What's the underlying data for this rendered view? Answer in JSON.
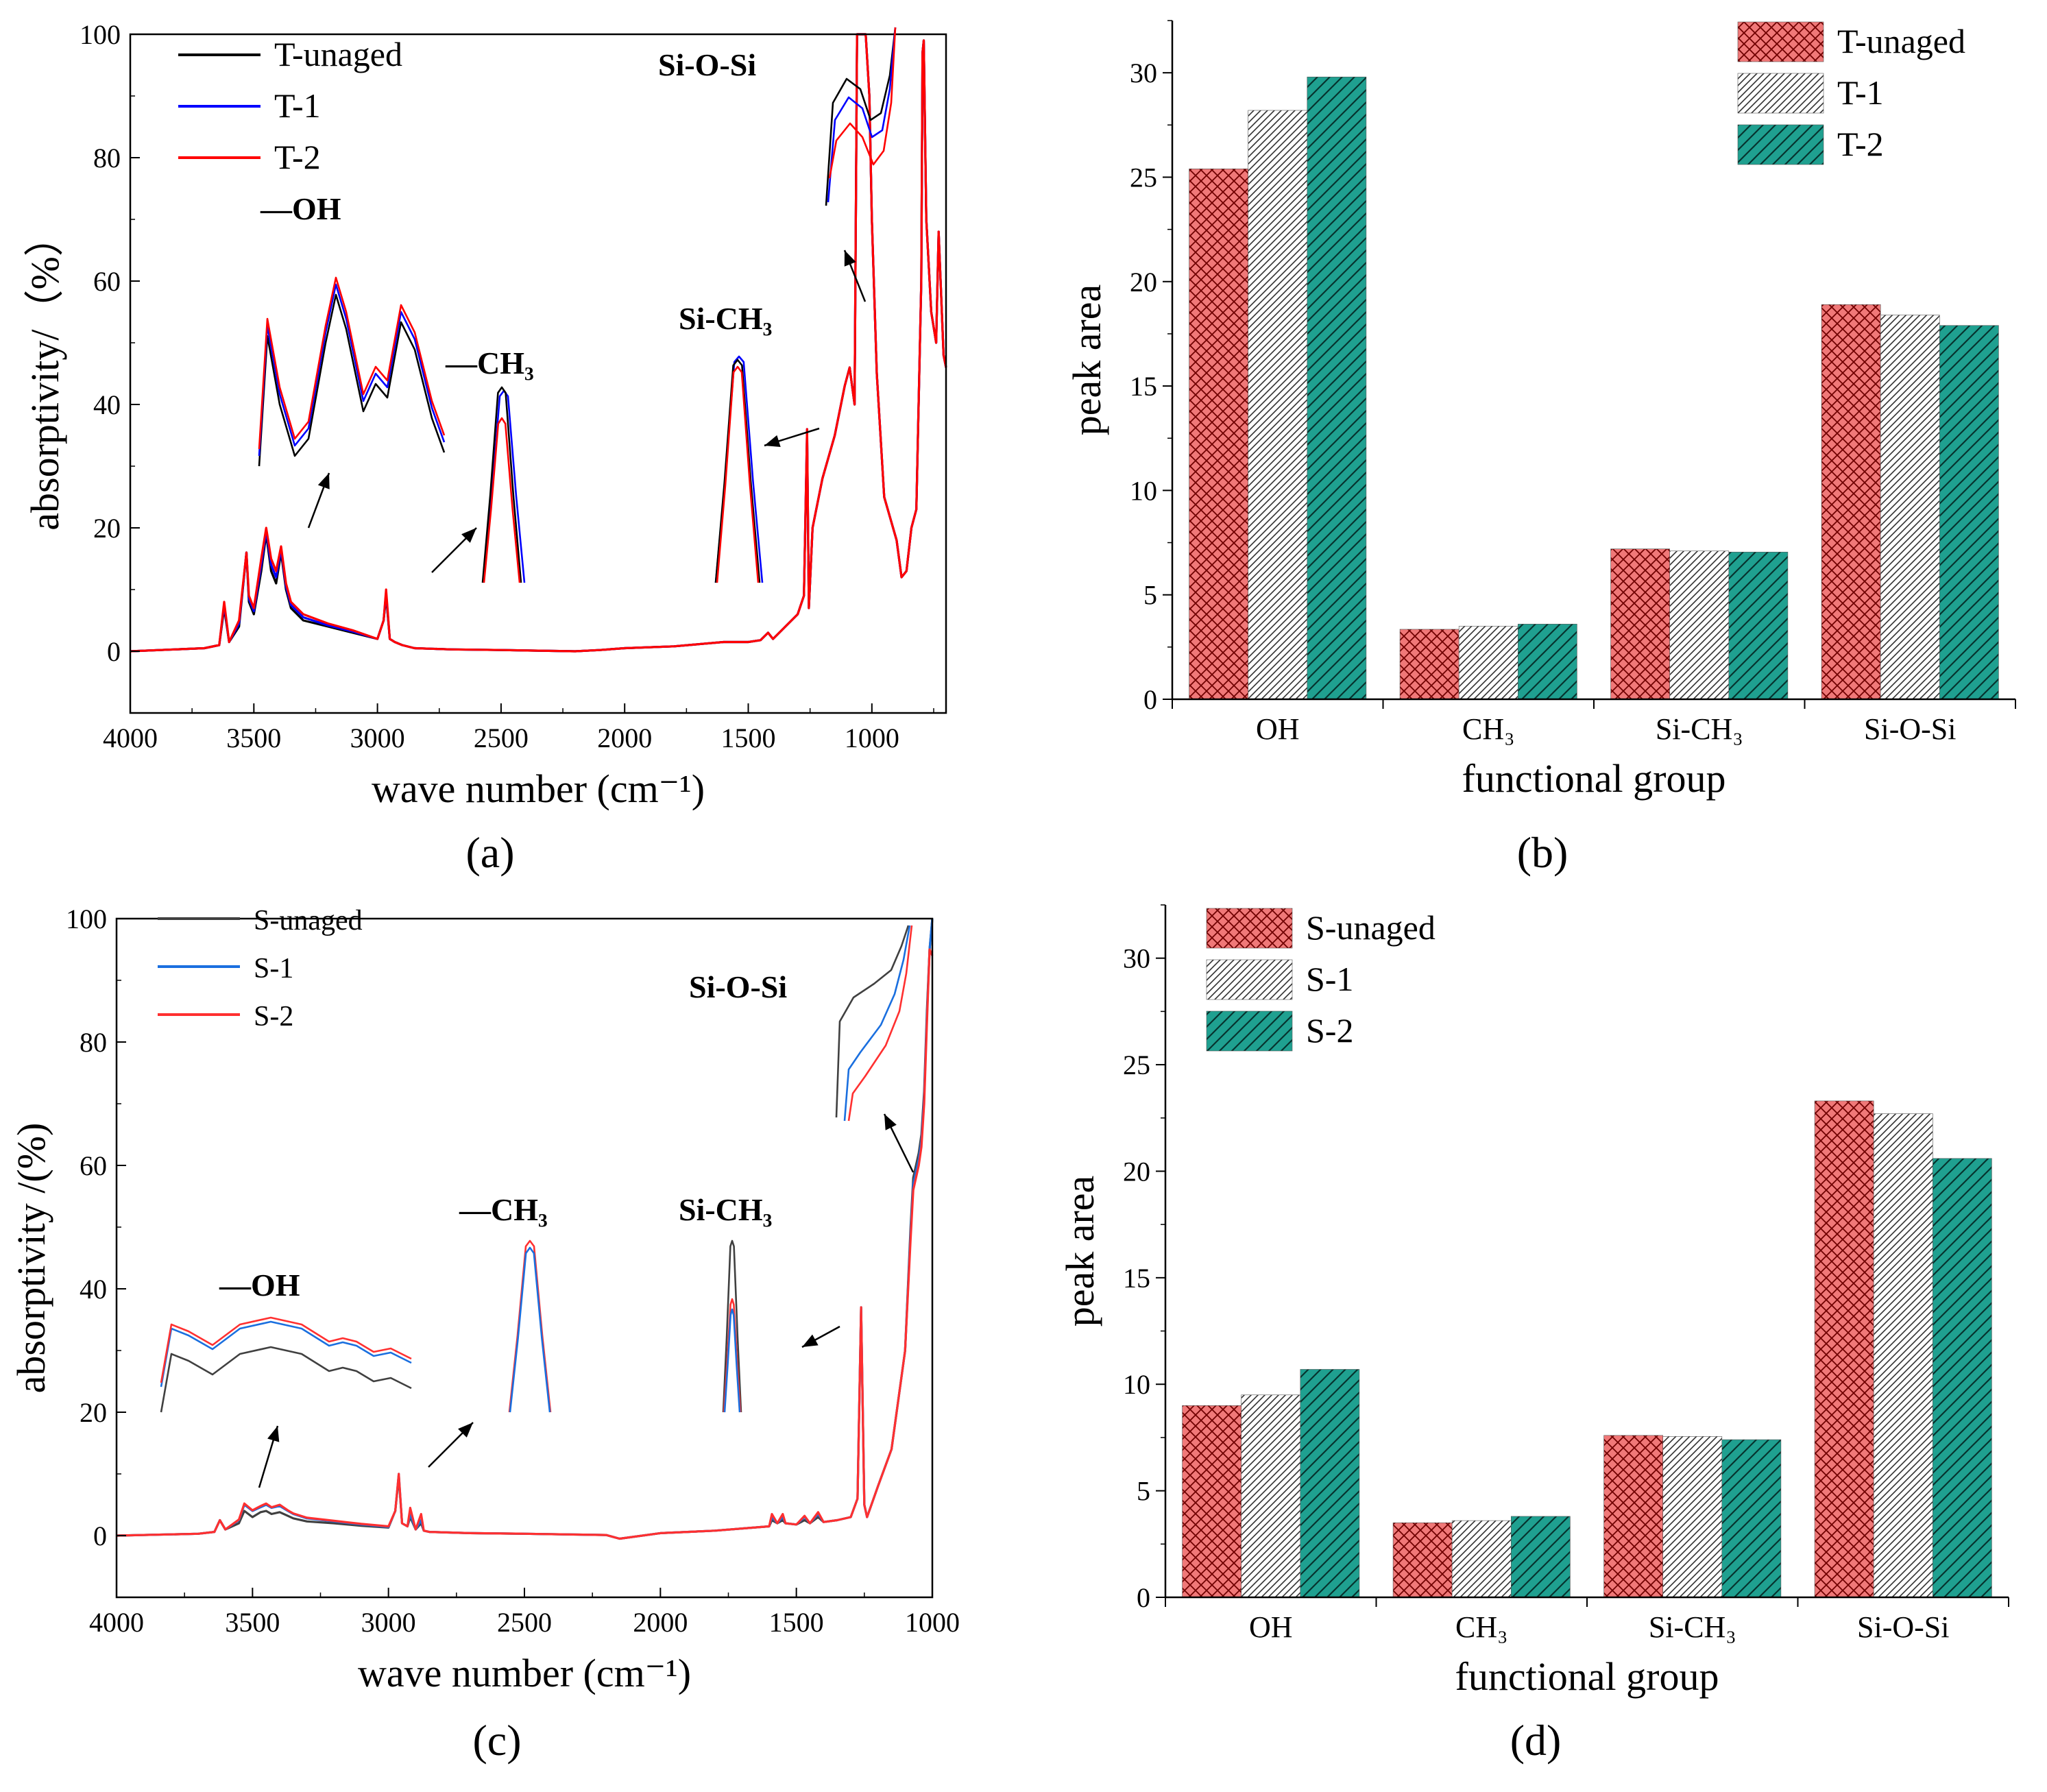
{
  "chart_data": [
    {
      "panel": "a",
      "type": "line",
      "panel_label": "(a)",
      "xlabel": "wave number (cm⁻¹)",
      "ylabel": "absorptivity/（%）",
      "xlim": [
        4000,
        700
      ],
      "ylim": [
        -10,
        100
      ],
      "xticks": [
        4000,
        3500,
        3000,
        2500,
        2000,
        1500,
        1000
      ],
      "yticks": [
        0,
        20,
        40,
        60,
        80,
        100
      ],
      "legend": [
        "T-unaged",
        "T-1",
        "T-2"
      ],
      "colors": [
        "#000000",
        "#0000ff",
        "#ff0000"
      ],
      "annotations": [
        "—OH",
        "—CH₃",
        "Si-CH₃",
        "Si-O-Si"
      ],
      "series": [
        {
          "name": "T-unaged",
          "x": [
            4000,
            3700,
            3640,
            3620,
            3600,
            3560,
            3530,
            3520,
            3500,
            3470,
            3450,
            3430,
            3410,
            3390,
            3370,
            3350,
            3300,
            3200,
            3100,
            3000,
            2975,
            2965,
            2950,
            2930,
            2900,
            2850,
            2700,
            2500,
            2200,
            2100,
            2000,
            1800,
            1600,
            1500,
            1450,
            1420,
            1400,
            1350,
            1300,
            1275,
            1262,
            1255,
            1240,
            1200,
            1150,
            1110,
            1090,
            1070,
            1060,
            1040,
            1025,
            1010,
            1000,
            980,
            950,
            900,
            880,
            860,
            840,
            820,
            800,
            795,
            790,
            780,
            760,
            740,
            730,
            720,
            710,
            700
          ],
          "y": [
            0,
            0.5,
            1,
            7,
            1.5,
            4,
            16,
            8,
            6,
            13,
            19,
            13,
            11,
            16,
            10,
            7,
            5,
            4,
            3,
            2,
            5,
            9,
            2,
            1.5,
            1,
            0.5,
            0.3,
            0.2,
            0,
            0.2,
            0.5,
            0.8,
            1.5,
            1.5,
            1.8,
            3,
            2,
            4,
            6,
            9,
            35,
            7,
            20,
            28,
            35,
            43,
            46,
            40,
            100,
            100,
            100,
            90,
            70,
            45,
            25,
            18,
            12,
            13,
            20,
            23,
            60,
            97,
            99,
            70,
            55,
            50,
            68,
            58,
            48,
            46
          ]
        },
        {
          "name": "T-1",
          "x": [
            4000,
            3700,
            3640,
            3620,
            3600,
            3560,
            3530,
            3520,
            3500,
            3470,
            3450,
            3430,
            3410,
            3390,
            3370,
            3350,
            3300,
            3200,
            3100,
            3000,
            2975,
            2965,
            2950,
            2930,
            2900,
            2850,
            2700,
            2500,
            2200,
            2100,
            2000,
            1800,
            1600,
            1500,
            1450,
            1420,
            1400,
            1350,
            1300,
            1275,
            1262,
            1255,
            1240,
            1200,
            1150,
            1110,
            1090,
            1070,
            1060,
            1040,
            1025,
            1010,
            1000,
            980,
            950,
            900,
            880,
            860,
            840,
            820,
            800,
            795,
            790,
            780,
            760,
            740,
            730,
            720,
            710,
            700
          ],
          "y": [
            0,
            0.5,
            1,
            7.5,
            1.5,
            4.5,
            16,
            8.5,
            6.5,
            14,
            19.5,
            14,
            12,
            16.5,
            10.5,
            7.5,
            5.5,
            4.2,
            3.2,
            2,
            5,
            9.5,
            2,
            1.5,
            1,
            0.5,
            0.3,
            0.2,
            0,
            0.2,
            0.5,
            0.8,
            1.5,
            1.5,
            1.8,
            3,
            2,
            4,
            6,
            9,
            36,
            7,
            20,
            28,
            35,
            43,
            46,
            40,
            100,
            100,
            100,
            90,
            70,
            45,
            25,
            18,
            12,
            13,
            20,
            23,
            60,
            97,
            99,
            70,
            55,
            50,
            68,
            58,
            48,
            46
          ]
        },
        {
          "name": "T-2",
          "x": [
            4000,
            3700,
            3640,
            3620,
            3600,
            3560,
            3530,
            3520,
            3500,
            3470,
            3450,
            3430,
            3410,
            3390,
            3370,
            3350,
            3300,
            3200,
            3100,
            3000,
            2975,
            2965,
            2950,
            2930,
            2900,
            2850,
            2700,
            2500,
            2200,
            2100,
            2000,
            1800,
            1600,
            1500,
            1450,
            1420,
            1400,
            1350,
            1300,
            1275,
            1262,
            1255,
            1240,
            1200,
            1150,
            1110,
            1090,
            1070,
            1060,
            1040,
            1025,
            1010,
            1000,
            980,
            950,
            900,
            880,
            860,
            840,
            820,
            800,
            795,
            790,
            780,
            760,
            740,
            730,
            720,
            710,
            700
          ],
          "y": [
            0,
            0.5,
            1,
            8,
            1.5,
            5,
            16,
            9,
            7,
            15,
            20,
            15,
            13,
            17,
            11,
            8,
            6,
            4.5,
            3.4,
            2,
            5,
            10,
            2,
            1.5,
            1,
            0.5,
            0.3,
            0.2,
            0,
            0.2,
            0.5,
            0.8,
            1.5,
            1.5,
            1.8,
            3,
            2,
            4,
            6,
            9,
            36,
            7,
            20,
            28,
            35,
            43,
            46,
            40,
            100,
            100,
            100,
            90,
            70,
            45,
            25,
            18,
            12,
            13,
            20,
            23,
            60,
            97,
            99,
            70,
            55,
            50,
            68,
            58,
            48,
            46
          ]
        }
      ]
    },
    {
      "panel": "b",
      "type": "bar",
      "panel_label": "(b)",
      "xlabel": "functional group",
      "ylabel": "peak area",
      "categories": [
        "OH",
        "CH₃",
        "Si-CH₃",
        "Si-O-Si"
      ],
      "ylim": [
        0,
        32.5
      ],
      "yticks": [
        0,
        5,
        10,
        15,
        20,
        25,
        30
      ],
      "series": [
        {
          "name": "T-unaged",
          "values": [
            25.4,
            3.35,
            7.2,
            18.9
          ],
          "color": "#f08080",
          "pattern": "crosshatch"
        },
        {
          "name": "T-1",
          "values": [
            28.2,
            3.5,
            7.1,
            18.4
          ],
          "color": "#ffffff",
          "pattern": "diagonal"
        },
        {
          "name": "T-2",
          "values": [
            29.8,
            3.6,
            7.05,
            17.9
          ],
          "color": "#20a090",
          "pattern": "diagonal-dense"
        }
      ]
    },
    {
      "panel": "c",
      "type": "line",
      "panel_label": "(c)",
      "xlabel": "wave number (cm⁻¹)",
      "ylabel": "absorptivity /(%)",
      "xlim": [
        4000,
        1000
      ],
      "ylim": [
        -10,
        100
      ],
      "xticks": [
        4000,
        3500,
        3000,
        2500,
        2000,
        1500,
        1000
      ],
      "yticks": [
        0,
        20,
        40,
        60,
        80,
        100
      ],
      "legend": [
        "S-unaged",
        "S-1",
        "S-2"
      ],
      "colors": [
        "#404040",
        "#1a6fdf",
        "#ff3030"
      ],
      "annotations": [
        "—OH",
        "—CH₃",
        "Si-CH₃",
        "Si-O-Si"
      ],
      "series": [
        {
          "name": "S-unaged",
          "x": [
            4000,
            3700,
            3640,
            3620,
            3600,
            3550,
            3530,
            3500,
            3470,
            3450,
            3430,
            3400,
            3370,
            3350,
            3300,
            3200,
            3100,
            3000,
            2975,
            2962,
            2950,
            2930,
            2920,
            2900,
            2880,
            2870,
            2850,
            2700,
            2500,
            2200,
            2150,
            2000,
            1800,
            1600,
            1590,
            1570,
            1550,
            1540,
            1500,
            1470,
            1450,
            1420,
            1400,
            1350,
            1300,
            1275,
            1262,
            1250,
            1240,
            1200,
            1150,
            1100,
            1080,
            1070,
            1060,
            1050,
            1040,
            1030,
            1020,
            1010,
            1000
          ],
          "y": [
            0,
            0.3,
            0.6,
            2.5,
            1,
            2,
            4,
            3,
            3.8,
            4,
            3.5,
            3.8,
            3.2,
            2.8,
            2.3,
            2,
            1.6,
            1.3,
            4,
            9.5,
            2,
            1.5,
            3,
            1,
            2,
            0.8,
            0.6,
            0.4,
            0.3,
            0.1,
            -0.5,
            0.4,
            0.8,
            1.5,
            2.5,
            2,
            2.5,
            2,
            1.8,
            2.5,
            2,
            3,
            2.2,
            2.5,
            3,
            6,
            37,
            5,
            3,
            8,
            14,
            30,
            50,
            58,
            60,
            62,
            65,
            72,
            85,
            95,
            100
          ]
        },
        {
          "name": "S-1",
          "x": [
            4000,
            3700,
            3640,
            3620,
            3600,
            3550,
            3530,
            3500,
            3470,
            3450,
            3430,
            3400,
            3370,
            3350,
            3300,
            3200,
            3100,
            3000,
            2975,
            2962,
            2950,
            2930,
            2920,
            2900,
            2880,
            2870,
            2850,
            2700,
            2500,
            2200,
            2150,
            2000,
            1800,
            1600,
            1590,
            1570,
            1550,
            1540,
            1500,
            1470,
            1450,
            1420,
            1400,
            1350,
            1300,
            1275,
            1262,
            1250,
            1240,
            1200,
            1150,
            1100,
            1080,
            1070,
            1060,
            1050,
            1040,
            1030,
            1020,
            1010,
            1000
          ],
          "y": [
            0,
            0.3,
            0.6,
            2.5,
            1,
            2.5,
            5,
            4,
            4.6,
            5,
            4.5,
            4.8,
            4,
            3.5,
            2.8,
            2.3,
            1.8,
            1.4,
            4,
            10,
            2,
            1.5,
            3.5,
            1,
            2.5,
            0.8,
            0.6,
            0.4,
            0.3,
            0.1,
            -0.5,
            0.4,
            0.8,
            1.5,
            3,
            2,
            3,
            2,
            1.8,
            3,
            2,
            3.5,
            2.2,
            2.5,
            3,
            6,
            37,
            5,
            3,
            8,
            14,
            30,
            49,
            57,
            59,
            61,
            64,
            71,
            84,
            95,
            100
          ]
        },
        {
          "name": "S-2",
          "x": [
            4000,
            3700,
            3640,
            3620,
            3600,
            3550,
            3530,
            3500,
            3470,
            3450,
            3430,
            3400,
            3370,
            3350,
            3300,
            3200,
            3100,
            3000,
            2975,
            2962,
            2950,
            2930,
            2920,
            2900,
            2880,
            2870,
            2850,
            2700,
            2500,
            2200,
            2150,
            2000,
            1800,
            1600,
            1590,
            1570,
            1550,
            1540,
            1500,
            1470,
            1450,
            1420,
            1400,
            1350,
            1300,
            1275,
            1262,
            1250,
            1240,
            1200,
            1150,
            1100,
            1080,
            1070,
            1060,
            1050,
            1040,
            1030,
            1020,
            1010,
            1000
          ],
          "y": [
            0,
            0.3,
            0.6,
            2.5,
            1,
            2.6,
            5.2,
            4.1,
            4.8,
            5.2,
            4.6,
            5,
            4.1,
            3.6,
            2.9,
            2.4,
            1.9,
            1.5,
            4,
            10,
            2,
            1.5,
            4.5,
            1,
            3.5,
            0.8,
            0.6,
            0.4,
            0.3,
            0.1,
            -0.5,
            0.4,
            0.8,
            1.5,
            3.5,
            2,
            3.5,
            2,
            1.8,
            3.2,
            2,
            3.8,
            2.2,
            2.5,
            3,
            6,
            37,
            5,
            3,
            8,
            14,
            30,
            48,
            56,
            58,
            60,
            63,
            70,
            83,
            95,
            94
          ]
        }
      ]
    },
    {
      "panel": "d",
      "type": "bar",
      "panel_label": "(d)",
      "xlabel": "functional group",
      "ylabel": "peak area",
      "categories": [
        "OH",
        "CH₃",
        "Si-CH₃",
        "Si-O-Si"
      ],
      "ylim": [
        0,
        32.5
      ],
      "yticks": [
        0,
        5,
        10,
        15,
        20,
        25,
        30
      ],
      "series": [
        {
          "name": "S-unaged",
          "values": [
            9.0,
            3.5,
            7.6,
            23.3
          ],
          "color": "#f08080",
          "pattern": "crosshatch"
        },
        {
          "name": "S-1",
          "values": [
            9.5,
            3.6,
            7.55,
            22.7
          ],
          "color": "#ffffff",
          "pattern": "diagonal"
        },
        {
          "name": "S-2",
          "values": [
            10.7,
            3.8,
            7.4,
            20.6
          ],
          "color": "#20a090",
          "pattern": "diagonal-dense"
        }
      ]
    }
  ]
}
